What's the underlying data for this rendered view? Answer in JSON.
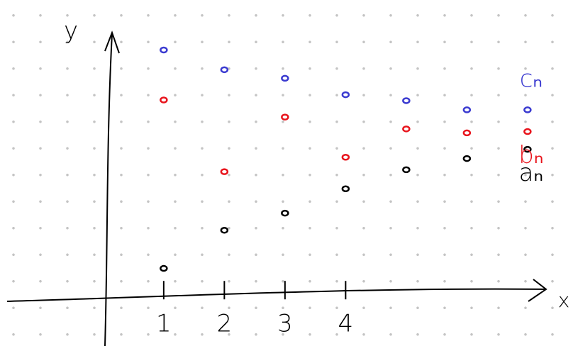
{
  "chart_data": {
    "type": "scatter",
    "x_label": "x",
    "y_label": "y",
    "xlim": [
      -1.7,
      7.75
    ],
    "ylim": [
      -0.86,
      4.4
    ],
    "xticks": [
      1,
      2,
      3,
      4
    ],
    "series": [
      {
        "name": "aₙ",
        "color": "#000000",
        "x": [
          1,
          2,
          3,
          4,
          5,
          6,
          7
        ],
        "values": [
          0.32,
          0.9,
          1.16,
          1.53,
          1.82,
          1.99,
          2.13
        ]
      },
      {
        "name": "bₙ",
        "color": "#e8141c",
        "x": [
          1,
          2,
          3,
          4,
          5,
          6,
          7
        ],
        "values": [
          2.88,
          1.79,
          2.62,
          2.01,
          2.44,
          2.38,
          2.4
        ]
      },
      {
        "name": "cₙ",
        "color": "#3a3ad0",
        "x": [
          1,
          2,
          3,
          4,
          5,
          6,
          7
        ],
        "values": [
          3.64,
          3.34,
          3.21,
          2.96,
          2.87,
          2.73,
          2.73
        ]
      }
    ]
  }
}
